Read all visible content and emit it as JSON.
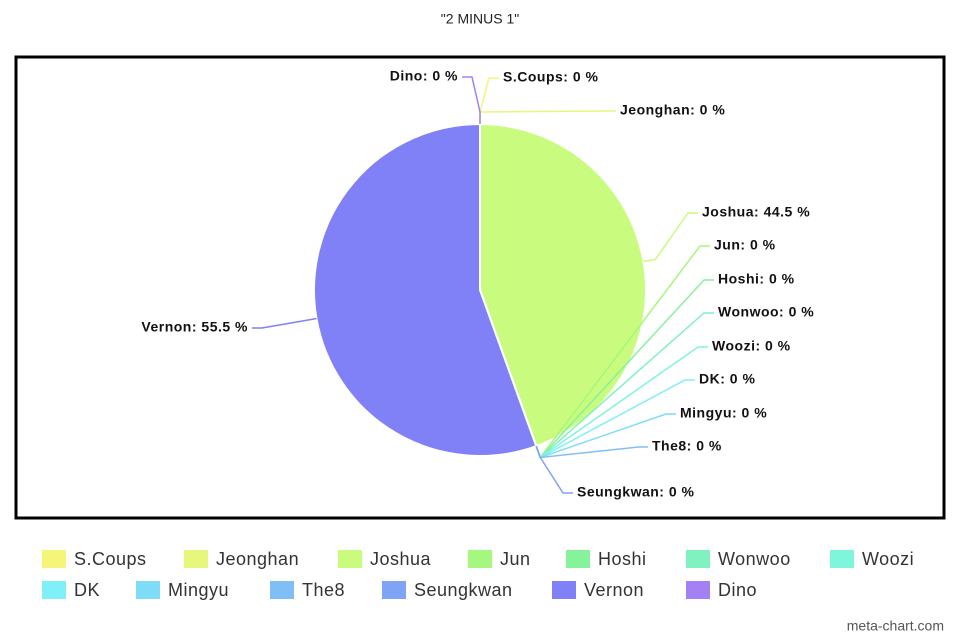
{
  "chart_data": {
    "type": "pie",
    "title": "\"2 MINUS 1\"",
    "categories": [
      "S.Coups",
      "Jeonghan",
      "Joshua",
      "Jun",
      "Hoshi",
      "Wonwoo",
      "Woozi",
      "DK",
      "Mingyu",
      "The8",
      "Seungkwan",
      "Vernon",
      "Dino"
    ],
    "values": [
      0,
      0,
      44.5,
      0,
      0,
      0,
      0,
      0,
      0,
      0,
      0,
      55.5,
      0
    ],
    "value_labels": [
      "S.Coups: 0 %",
      "Jeonghan: 0 %",
      "Joshua: 44.5 %",
      "Jun: 0 %",
      "Hoshi: 0 %",
      "Wonwoo: 0 %",
      "Woozi: 0 %",
      "DK: 0 %",
      "Mingyu: 0 %",
      "The8: 0 %",
      "Seungkwan: 0 %",
      "Vernon: 55.5 %",
      "Dino: 0 %"
    ],
    "colors": [
      "#f5f57a",
      "#e6f77c",
      "#c9fc7e",
      "#a6f77f",
      "#86f29a",
      "#7ff2c0",
      "#7ff5dc",
      "#7ff0f7",
      "#7fdcf7",
      "#7fbff5",
      "#7fa3f5",
      "#8080f7",
      "#a480f5"
    ],
    "legend": "bottom",
    "watermark": "meta-chart.com"
  }
}
